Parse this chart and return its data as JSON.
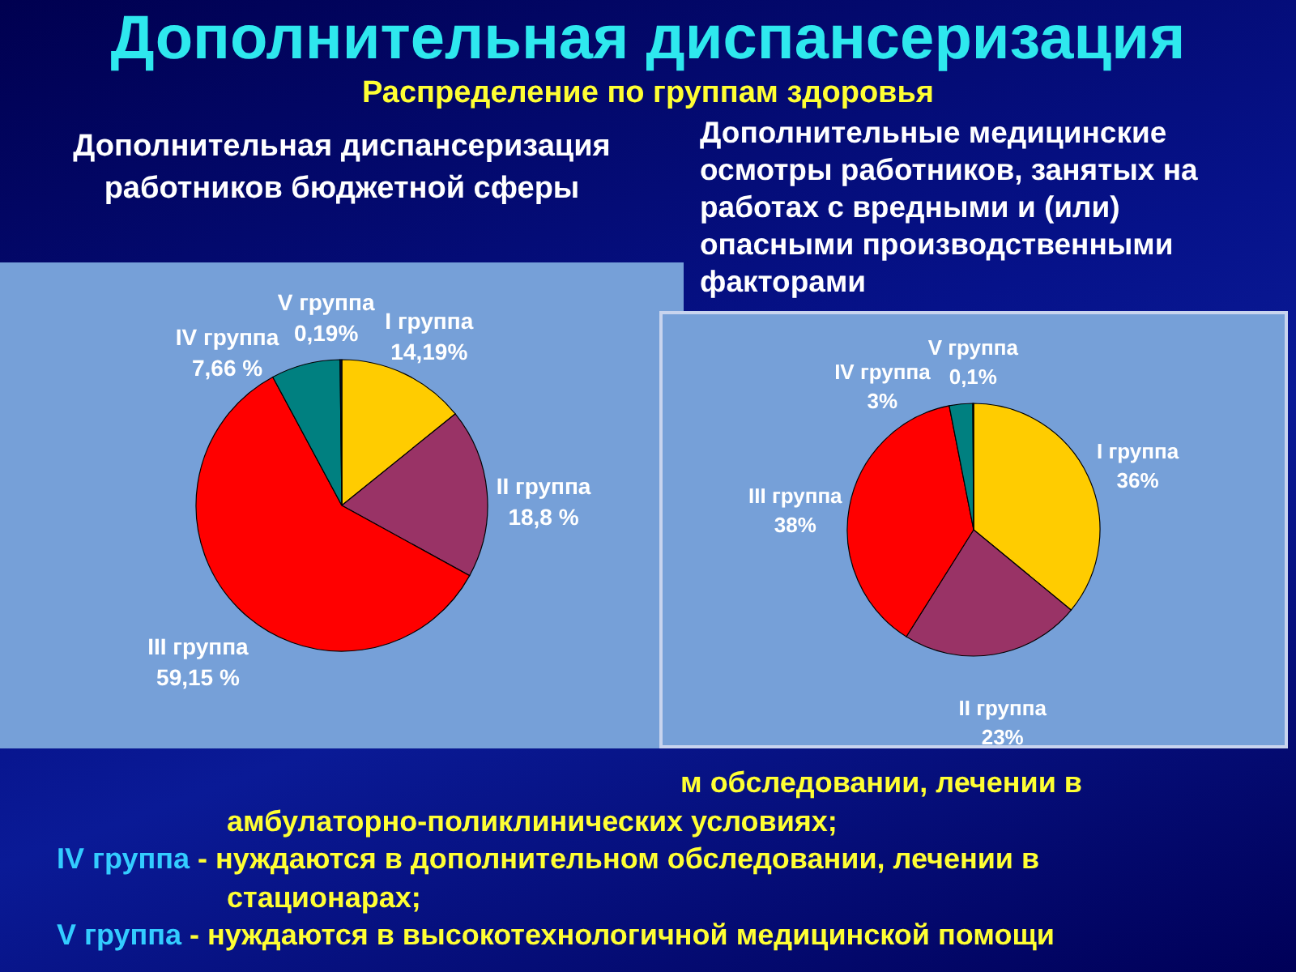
{
  "chart_data": [
    {
      "type": "other",
      "title": "Дополнительная диспансеризация",
      "subtitle": "Распределение по группам здоровья"
    },
    {
      "type": "pie",
      "title": "Дополнительная диспансеризация работников бюджетной сферы",
      "categories": [
        "I группа",
        "II группа",
        "III группа",
        "IV группа",
        "V группа"
      ],
      "values": [
        14.19,
        18.8,
        59.15,
        7.66,
        0.19
      ],
      "value_labels": [
        "14,19%",
        "18,8 %",
        "59,15 %",
        "7,66 %",
        "0,19%"
      ],
      "colors": [
        "#ffcc00",
        "#993366",
        "#ff0000",
        "#008080",
        "#0a1440"
      ]
    },
    {
      "type": "pie",
      "title": "Дополнительные медицинские осмотры работников, занятых на работах с вредными и (или) опасными производственными факторами",
      "categories": [
        "I группа",
        "II группа",
        "III группа",
        "IV группа",
        "V группа"
      ],
      "values": [
        36,
        23,
        38,
        3,
        0.1
      ],
      "value_labels": [
        "36%",
        "23%",
        "38%",
        "3%",
        "0,1%"
      ],
      "colors": [
        "#ffcc00",
        "#993366",
        "#ff0000",
        "#008080",
        "#0a1440"
      ]
    },
    {
      "type": "other",
      "annotations": [
        "м обследовании, лечении в амбулаторно-поликлинических условиях;",
        "IV группа - нуждаются в дополнительном обследовании, лечении в стационарах;",
        "V группа - нуждаются в высокотехнологичной медицинской помощи"
      ]
    }
  ]
}
